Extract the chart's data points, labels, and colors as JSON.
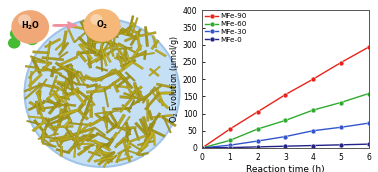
{
  "x": [
    0,
    1,
    2,
    3,
    4,
    5,
    6
  ],
  "MFe90": [
    0,
    55,
    105,
    155,
    200,
    248,
    293
  ],
  "MFe60": [
    0,
    22,
    55,
    80,
    110,
    132,
    158
  ],
  "MFe30": [
    0,
    8,
    20,
    33,
    50,
    60,
    72
  ],
  "MFe0": [
    0,
    1,
    3,
    5,
    7,
    9,
    11
  ],
  "colors": {
    "MFe90": "#e8231a",
    "MFe60": "#2eab2e",
    "MFe30": "#3355cc",
    "MFe0": "#222288"
  },
  "ylabel": "O$_2$ Evolution (μmol/g)",
  "xlabel": "Reaction time (h)",
  "ylim": [
    0,
    400
  ],
  "yticks": [
    0,
    50,
    100,
    150,
    200,
    250,
    300,
    350,
    400
  ],
  "xlim": [
    0,
    6
  ],
  "xticks": [
    0,
    1,
    2,
    3,
    4,
    5,
    6
  ],
  "legend_labels": [
    "MFe-90",
    "MFe-60",
    "MFe-30",
    "MFe-0"
  ],
  "rod_color": "#b8a820",
  "rod_edge_color": "#7a6e00",
  "ellipse_color": "#c5dff5",
  "ellipse_edge": "#a0c4e8",
  "h2o_color": "#f0a878",
  "o2_color": "#f5b878",
  "green_color": "#44bb33",
  "arrow_color": "#f090a0"
}
